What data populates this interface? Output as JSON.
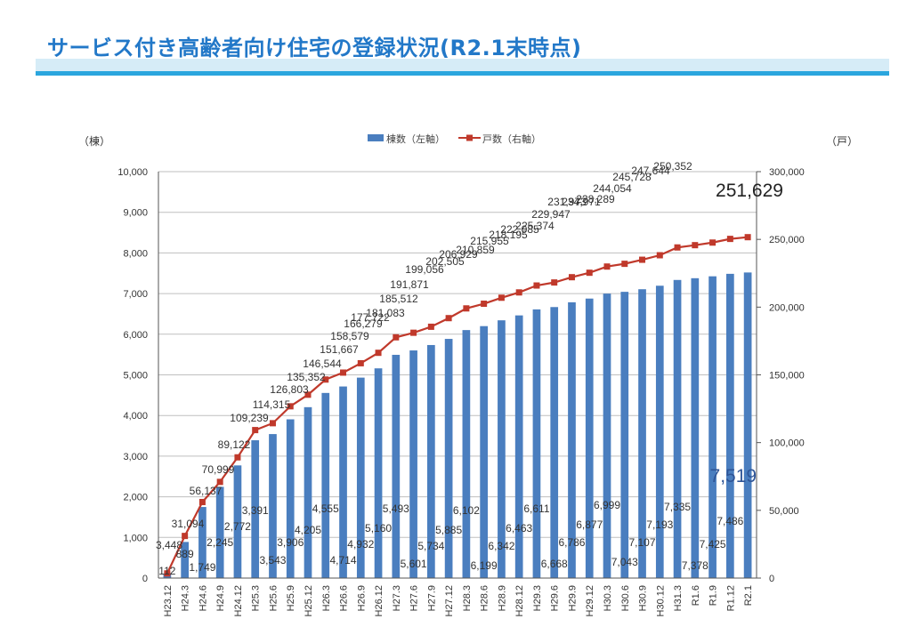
{
  "title": "サービス付き高齢者向け住宅の登録状況(R2.1末時点)",
  "colors": {
    "bar": "#4a7ebf",
    "line": "#c0392b",
    "title": "#2278c8",
    "accent_line": "#2ba6de"
  },
  "chart_data": {
    "type": "bar+line",
    "categories": [
      "H23.12",
      "H24.3",
      "H24.6",
      "H24.9",
      "H24.12",
      "H25.3",
      "H25.6",
      "H25.9",
      "H25.12",
      "H26.3",
      "H26.6",
      "H26.9",
      "H26.12",
      "H27.3",
      "H27.6",
      "H27.9",
      "H27.12",
      "H28.3",
      "H28.6",
      "H28.9",
      "H28.12",
      "H29.3",
      "H29.6",
      "H29.9",
      "H29.12",
      "H30.3",
      "H30.6",
      "H30.9",
      "H30.12",
      "H31.3",
      "R1.6",
      "R1.9",
      "R1.12",
      "R2.1"
    ],
    "series": [
      {
        "name": "棟数（左軸）",
        "type": "bar",
        "axis": "left",
        "values": [
          112,
          889,
          1749,
          2245,
          2772,
          3391,
          3543,
          3906,
          4205,
          4555,
          4714,
          4932,
          5160,
          5493,
          5601,
          5734,
          5885,
          6102,
          6199,
          6342,
          6463,
          6611,
          6668,
          6786,
          6877,
          6999,
          7043,
          7107,
          7193,
          7335,
          7378,
          7425,
          7486,
          7519
        ]
      },
      {
        "name": "戸数（右軸）",
        "type": "line",
        "axis": "right",
        "values": [
          3448,
          31094,
          56137,
          70999,
          89122,
          109239,
          114315,
          126803,
          135352,
          146544,
          151667,
          158579,
          166279,
          177722,
          181083,
          185512,
          191871,
          199056,
          202505,
          206929,
          210859,
          215955,
          218195,
          222085,
          225374,
          229947,
          231973,
          234971,
          238289,
          244054,
          245728,
          247644,
          250352,
          251629
        ]
      }
    ],
    "left_ylabel": "（棟）",
    "right_ylabel": "（戸）",
    "left_ylim": [
      0,
      10000
    ],
    "right_ylim": [
      0,
      300000
    ],
    "left_ticks": [
      "0",
      "1,000",
      "2,000",
      "3,000",
      "4,000",
      "5,000",
      "6,000",
      "7,000",
      "8,000",
      "9,000",
      "10,000"
    ],
    "right_ticks": [
      "0",
      "50,000",
      "100,000",
      "150,000",
      "200,000",
      "250,000",
      "300,000"
    ],
    "bar_labels": [
      "112",
      "889",
      "1,749",
      "2,245",
      "2,772",
      "3,391",
      "3,543",
      "3,906",
      "4,205",
      "4,555",
      "4,714",
      "4,932",
      "5,160",
      "5,493",
      "5,601",
      "5,734",
      "5,885",
      "6,102",
      "6,199",
      "6,342",
      "6,463",
      "6,611",
      "6,668",
      "6,786",
      "6,877",
      "6,999",
      "7,043",
      "7,107",
      "7,193",
      "7,335",
      "7,378",
      "7,425",
      "7,486",
      "7,519"
    ],
    "line_labels": [
      "3,448",
      "31,094",
      "56,137",
      "70,999",
      "89,122",
      "109,239",
      "114,315",
      "126,803",
      "135,352",
      "146,544",
      "151,667",
      "158,579",
      "166,279",
      "177,722",
      "181,083",
      "185,512",
      "191,871",
      "199,056",
      "202,505",
      "206,929",
      "210,859",
      "215,955",
      "218,195",
      "222,085",
      "225,374",
      "229,947",
      "231,973",
      "234,971",
      "238,289",
      "244,054",
      "245,728",
      "247,644",
      "250,352",
      "251,629"
    ],
    "grid": true,
    "legend_position": "top-center"
  }
}
